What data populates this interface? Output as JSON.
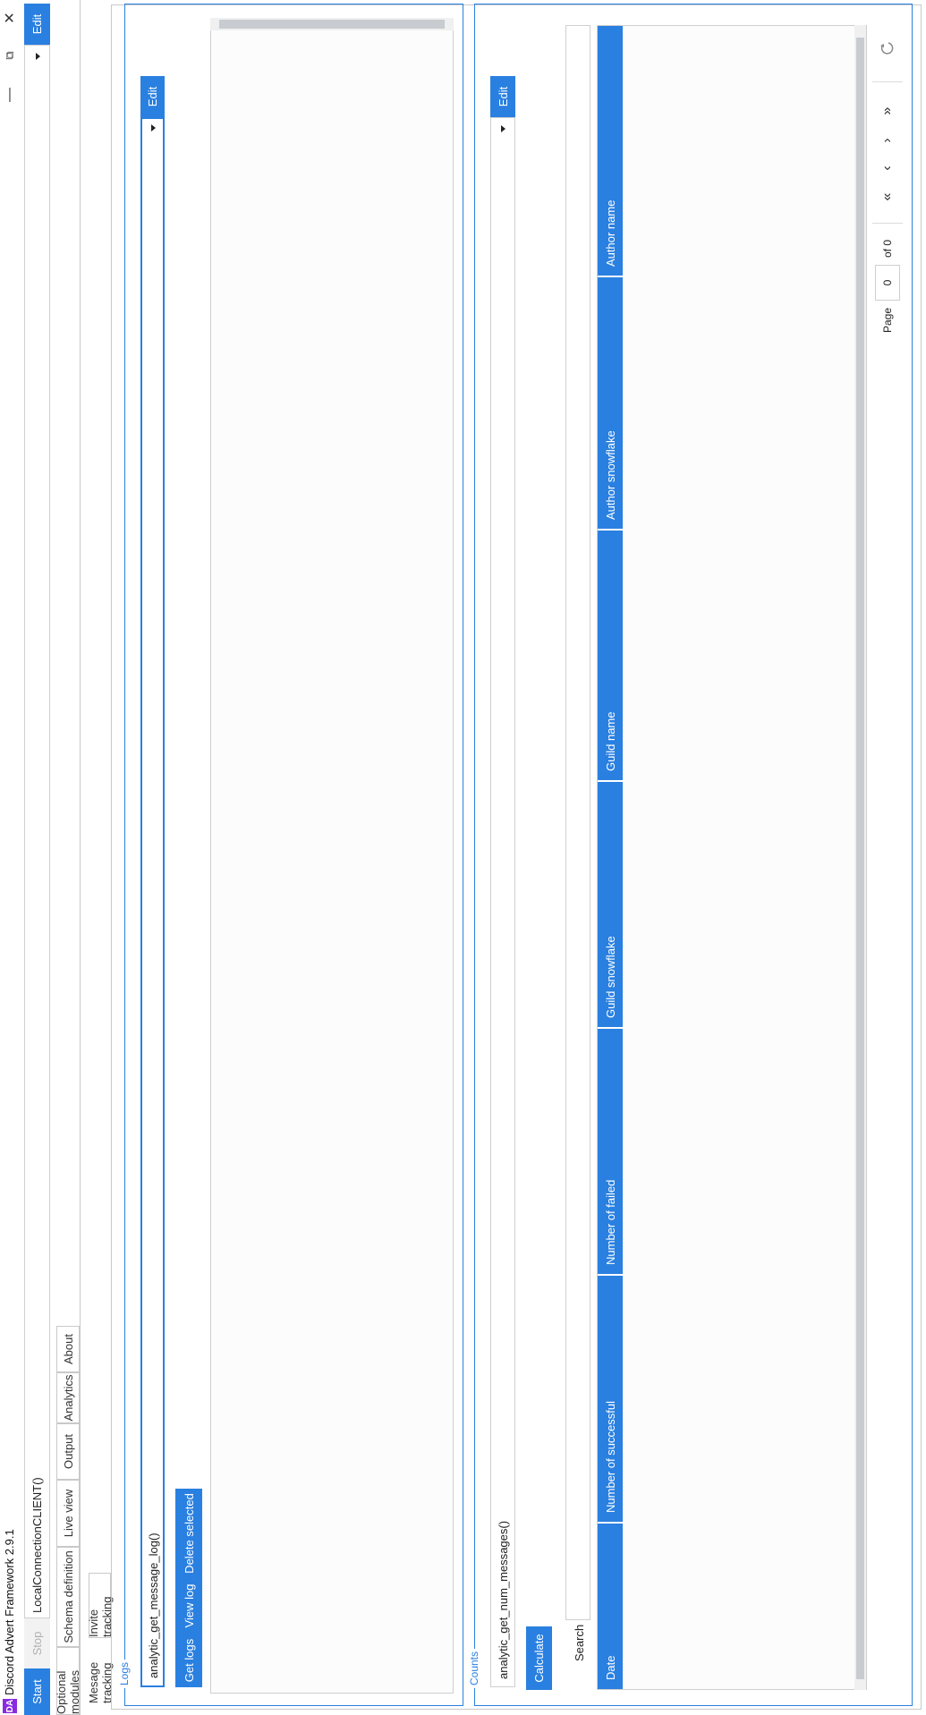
{
  "window": {
    "title": "Discord Advert Framework 2.9.1",
    "minimize_glyph": "—",
    "maximize_glyph": "⧉",
    "close_glyph": "✕"
  },
  "toolbar": {
    "start_label": "Start",
    "stop_label": "Stop",
    "client_value": "LocalConnectionCLIENT()",
    "edit_label": "Edit"
  },
  "tabs": [
    {
      "label": "Optional modules"
    },
    {
      "label": "Schema definition"
    },
    {
      "label": "Live view"
    },
    {
      "label": "Output"
    },
    {
      "label": "Analytics"
    },
    {
      "label": "About"
    }
  ],
  "subtabs": [
    {
      "label": "Mesage tracking"
    },
    {
      "label": "Invite tracking"
    }
  ],
  "logs": {
    "legend": "Logs",
    "combo_value": "analytic_get_message_log()",
    "edit_label": "Edit",
    "get_logs_label": "Get logs",
    "view_log_label": "View log",
    "delete_selected_label": "Delete selected"
  },
  "counts": {
    "legend": "Counts",
    "combo_value": "analytic_get_num_messages()",
    "edit_label": "Edit",
    "calculate_label": "Calculate",
    "search_label": "Search",
    "search_value": "",
    "columns": [
      "Date",
      "Number of successful",
      "Number of failed",
      "Guild snowflake",
      "Guild name",
      "Author snowflake",
      "Author name"
    ],
    "pagination": {
      "page_label": "Page",
      "page_value": "0",
      "of_label": "of 0",
      "first_glyph": "«",
      "prev_glyph": "‹",
      "next_glyph": "›",
      "last_glyph": "»"
    }
  },
  "colors": {
    "accent": "#2a80e0",
    "logo_bg": "#8a2be2"
  }
}
